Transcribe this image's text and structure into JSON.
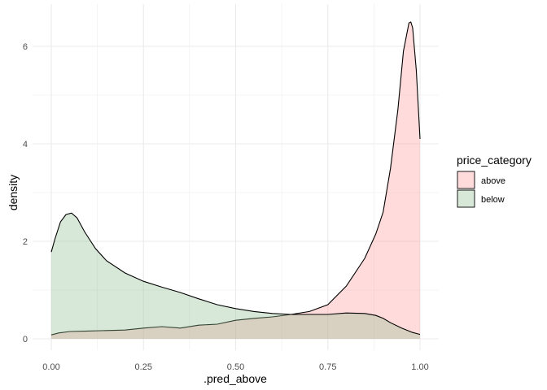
{
  "chart_data": {
    "type": "area",
    "xlabel": ".pred_above",
    "ylabel": "density",
    "xlim": [
      0,
      1
    ],
    "ylim": [
      0,
      6.6
    ],
    "x_ticks": [
      0,
      0.25,
      0.5,
      0.75,
      1
    ],
    "x_tick_labels": [
      "0.00",
      "0.25",
      "0.50",
      "0.75",
      "1.00"
    ],
    "y_ticks": [
      0,
      2,
      4,
      6
    ],
    "y_tick_labels": [
      "0",
      "2",
      "4",
      "6"
    ],
    "grid": true,
    "legend": {
      "title": "price_category",
      "position": "right"
    },
    "series": [
      {
        "name": "above",
        "color": "#FF9999",
        "x": [
          0.0,
          0.02,
          0.05,
          0.1,
          0.15,
          0.2,
          0.25,
          0.3,
          0.35,
          0.4,
          0.45,
          0.5,
          0.55,
          0.6,
          0.65,
          0.7,
          0.75,
          0.8,
          0.85,
          0.88,
          0.9,
          0.92,
          0.94,
          0.955,
          0.97,
          0.975,
          0.98,
          0.99,
          1.0
        ],
        "values": [
          0.08,
          0.12,
          0.15,
          0.16,
          0.17,
          0.18,
          0.22,
          0.25,
          0.22,
          0.28,
          0.3,
          0.38,
          0.42,
          0.45,
          0.5,
          0.56,
          0.7,
          1.08,
          1.65,
          2.15,
          2.6,
          3.5,
          4.7,
          5.9,
          6.48,
          6.5,
          6.38,
          5.5,
          4.1
        ]
      },
      {
        "name": "below",
        "color": "#8FBC8F",
        "x": [
          0.0,
          0.01,
          0.025,
          0.04,
          0.055,
          0.07,
          0.09,
          0.12,
          0.15,
          0.2,
          0.25,
          0.3,
          0.35,
          0.4,
          0.45,
          0.5,
          0.55,
          0.6,
          0.65,
          0.7,
          0.75,
          0.8,
          0.85,
          0.88,
          0.9,
          0.92,
          0.95,
          0.98,
          1.0
        ],
        "values": [
          1.78,
          2.05,
          2.4,
          2.55,
          2.58,
          2.48,
          2.2,
          1.85,
          1.6,
          1.35,
          1.18,
          1.06,
          0.95,
          0.82,
          0.7,
          0.62,
          0.56,
          0.52,
          0.5,
          0.5,
          0.5,
          0.53,
          0.52,
          0.48,
          0.42,
          0.33,
          0.22,
          0.13,
          0.09
        ]
      }
    ]
  }
}
